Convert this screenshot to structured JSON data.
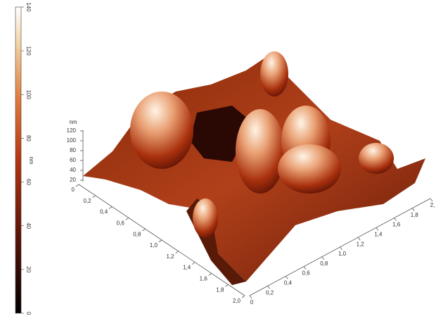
{
  "chart_data": {
    "type": "surface",
    "colorbar": {
      "label": "nm",
      "lim": [
        0,
        140
      ],
      "ticks": [
        0,
        20,
        40,
        60,
        80,
        100,
        120,
        140
      ]
    },
    "zaxis": {
      "label": "nm",
      "lim": [
        20,
        120
      ],
      "ticks": [
        20,
        40,
        60,
        80,
        100,
        120
      ]
    },
    "xlim": [
      0,
      2
    ],
    "xticks": [
      0,
      {
        "value": 0.2,
        "label": "0,2"
      },
      {
        "value": 0.4,
        "label": "0,4"
      },
      {
        "value": 0.6,
        "label": "0,6"
      },
      {
        "value": 0.8,
        "label": "0,8"
      },
      {
        "value": 1.0,
        "label": "1,0"
      },
      {
        "value": 1.2,
        "label": "1,2"
      },
      {
        "value": 1.4,
        "label": "1,4"
      },
      {
        "value": 1.6,
        "label": "1,6"
      },
      {
        "value": 1.8,
        "label": "1,8"
      },
      {
        "value": 2.0,
        "label": "2,0"
      }
    ],
    "ylim": [
      0,
      2
    ],
    "yticks": [
      0,
      {
        "value": 0.2,
        "label": "0,2"
      },
      {
        "value": 0.4,
        "label": "0,4"
      },
      {
        "value": 0.6,
        "label": "0,6"
      },
      {
        "value": 0.8,
        "label": "0,8"
      },
      {
        "value": 1.0,
        "label": "1,0"
      },
      {
        "value": 1.2,
        "label": "1,2"
      },
      {
        "value": 1.4,
        "label": "1,4"
      },
      {
        "value": 1.6,
        "label": "1,6"
      },
      {
        "value": 1.8,
        "label": "1,8"
      },
      {
        "value": 2.0,
        "label": "2,"
      }
    ]
  }
}
